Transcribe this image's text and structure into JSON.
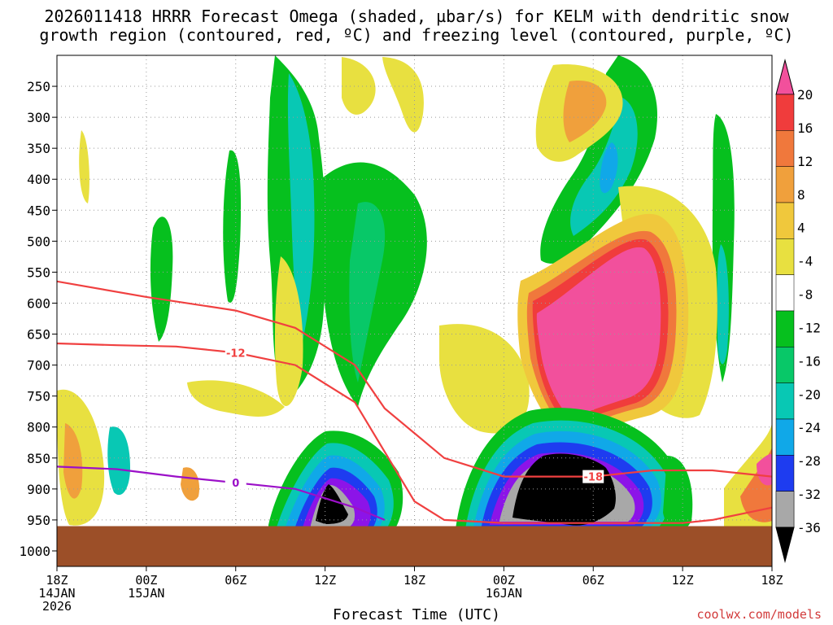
{
  "title_line1": "2026011418 HRRR Forecast Omega (shaded, µbar/s) for KELM with dendritic snow",
  "title_line2": "growth region (contoured, red, ºC) and freezing level (contoured, purple, ºC)",
  "xlabel": "Forecast Time (UTC)",
  "credit": "coolwx.com/models",
  "colors": {
    "dgz_contour": "#f04040",
    "freezing_contour": "#9b10c8",
    "ground": "#9c4f28",
    "grid": "#9a9a9a"
  },
  "chart_data": {
    "type": "heatmap",
    "title": "2026011418 HRRR Forecast Omega (shaded, µbar/s) for KELM with dendritic snow growth region (contoured, red, ºC) and freezing level (contoured, purple, ºC)",
    "xlabel": "Forecast Time (UTC)",
    "ylabel": "",
    "x_ticks": [
      {
        "hour": 0,
        "label": [
          "18Z",
          "14JAN",
          "2026"
        ]
      },
      {
        "hour": 6,
        "label": [
          "00Z",
          "15JAN"
        ]
      },
      {
        "hour": 12,
        "label": [
          "06Z"
        ]
      },
      {
        "hour": 18,
        "label": [
          "12Z"
        ]
      },
      {
        "hour": 24,
        "label": [
          "18Z"
        ]
      },
      {
        "hour": 30,
        "label": [
          "00Z",
          "16JAN"
        ]
      },
      {
        "hour": 36,
        "label": [
          "06Z"
        ]
      },
      {
        "hour": 42,
        "label": [
          "12Z"
        ]
      },
      {
        "hour": 48,
        "label": [
          "18Z"
        ]
      }
    ],
    "xlim": [
      0,
      48
    ],
    "y_ticks": [
      250,
      300,
      350,
      400,
      450,
      500,
      550,
      600,
      650,
      700,
      750,
      800,
      850,
      900,
      950,
      1000
    ],
    "ylim": [
      200,
      1025
    ],
    "ground_pressure": 960,
    "colorbar": {
      "labels": [
        "20",
        "16",
        "12",
        "8",
        "4",
        "-4",
        "-8",
        "-12",
        "-16",
        "-20",
        "-24",
        "-28",
        "-32",
        "-36"
      ],
      "colors": [
        "#f2509c",
        "#f03c3c",
        "#f0783c",
        "#f0a03c",
        "#f0c83c",
        "#e8e040",
        "#ffffff",
        "#06c01e",
        "#08c868",
        "#08c8b4",
        "#10a8e8",
        "#1e3cf0",
        "#8c14e8",
        "#a8a8a8"
      ]
    },
    "omega_features": [
      {
        "label": "upper ascent",
        "hour_range": [
          15,
          19
        ],
        "p_range": [
          250,
          600
        ],
        "value": -16
      },
      {
        "label": "upper ascent",
        "hour_range": [
          36,
          41
        ],
        "p_range": [
          250,
          450
        ],
        "value": -20
      },
      {
        "label": "low-level ascent core",
        "hour_range": [
          17.5,
          19.5
        ],
        "p_range": [
          760,
          930
        ],
        "value": -38
      },
      {
        "label": "low-level ascent core",
        "hour_range": [
          30.5,
          36.5
        ],
        "p_range": [
          740,
          930
        ],
        "value": -40
      },
      {
        "label": "subsidence maximum",
        "hour_range": [
          31.5,
          39.5
        ],
        "p_range": [
          390,
          700
        ],
        "value": 22
      },
      {
        "label": "low-level ascent",
        "hour_range": [
          44,
          48
        ],
        "p_range": [
          650,
          950
        ],
        "value": -10
      }
    ],
    "contours": {
      "dgz_top_-18": {
        "label": "-18",
        "hours": [
          0,
          6,
          12,
          16,
          20,
          22,
          26,
          30,
          36,
          40,
          44,
          48
        ],
        "pressure": [
          565,
          590,
          612,
          640,
          700,
          770,
          850,
          880,
          880,
          870,
          870,
          880
        ]
      },
      "dgz_bottom_-12": {
        "label": "-12",
        "hours": [
          0,
          4,
          8,
          12,
          16,
          20,
          22,
          24,
          26,
          30,
          34,
          38,
          42,
          44,
          46,
          48
        ],
        "pressure": [
          665,
          668,
          670,
          680,
          700,
          760,
          840,
          920,
          950,
          955,
          955,
          955,
          955,
          950,
          940,
          930
        ]
      },
      "freezing_0": {
        "label": "0",
        "hours": [
          0,
          4,
          8,
          12,
          16,
          20,
          22
        ],
        "pressure": [
          864,
          868,
          880,
          890,
          900,
          930,
          950
        ]
      }
    }
  }
}
